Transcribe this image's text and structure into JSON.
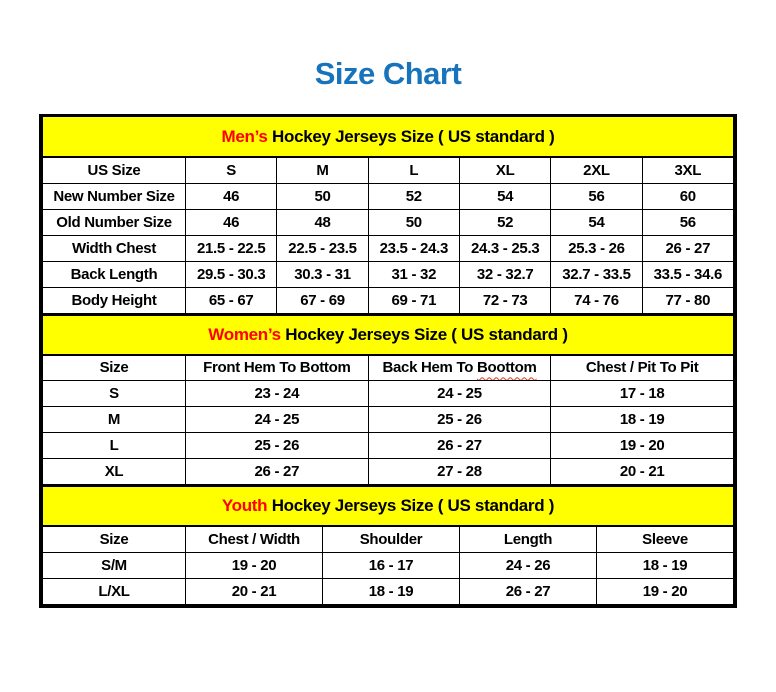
{
  "page": {
    "title": "Size Chart"
  },
  "colors": {
    "title_blue": "#1774bc",
    "header_yellow": "#ffff00",
    "accent_red": "#ff0000",
    "border": "#000000"
  },
  "tables": {
    "mens": {
      "header": {
        "accent": "Men’s",
        "rest": "Hockey Jerseys Size ( US standard )"
      },
      "columns": [
        "US Size",
        "S",
        "M",
        "L",
        "XL",
        "2XL",
        "3XL"
      ],
      "rows": [
        {
          "label": "New Number Size",
          "values": [
            "46",
            "50",
            "52",
            "54",
            "56",
            "60"
          ]
        },
        {
          "label": "Old Number Size",
          "values": [
            "46",
            "48",
            "50",
            "52",
            "54",
            "56"
          ]
        },
        {
          "label": "Width Chest",
          "values": [
            "21.5 - 22.5",
            "22.5 - 23.5",
            "23.5 - 24.3",
            "24.3 - 25.3",
            "25.3 - 26",
            "26 - 27"
          ]
        },
        {
          "label": "Back Length",
          "values": [
            "29.5 - 30.3",
            "30.3 - 31",
            "31 - 32",
            "32 - 32.7",
            "32.7 - 33.5",
            "33.5 - 34.6"
          ]
        },
        {
          "label": "Body Height",
          "values": [
            "65 - 67",
            "67 - 69",
            "69 - 71",
            "72 - 73",
            "74 - 76",
            "77 - 80"
          ]
        }
      ]
    },
    "womens": {
      "header": {
        "accent": "Women’s",
        "rest": "Hockey Jerseys Size ( US standard )"
      },
      "columns": [
        "Size",
        "Front Hem To Bottom",
        "Back Hem To",
        "Chest / Pit To Pit"
      ],
      "misspelled_word": "Boottom",
      "rows": [
        {
          "label": "S",
          "values": [
            "23 - 24",
            "24 - 25",
            "17 - 18"
          ]
        },
        {
          "label": "M",
          "values": [
            "24 - 25",
            "25 - 26",
            "18 - 19"
          ]
        },
        {
          "label": "L",
          "values": [
            "25 - 26",
            "26 - 27",
            "19 - 20"
          ]
        },
        {
          "label": "XL",
          "values": [
            "26 - 27",
            "27 - 28",
            "20 - 21"
          ]
        }
      ]
    },
    "youth": {
      "header": {
        "accent": "Youth",
        "rest": "Hockey Jerseys Size ( US standard )"
      },
      "columns": [
        "Size",
        "Chest / Width",
        "Shoulder",
        "Length",
        "Sleeve"
      ],
      "rows": [
        {
          "label": "S/M",
          "values": [
            "19 - 20",
            "16 - 17",
            "24 - 26",
            "18 - 19"
          ]
        },
        {
          "label": "L/XL",
          "values": [
            "20 - 21",
            "18 - 19",
            "26 - 27",
            "19 - 20"
          ]
        }
      ]
    }
  }
}
